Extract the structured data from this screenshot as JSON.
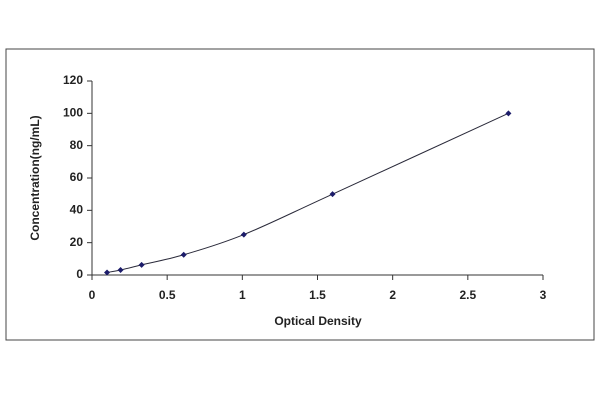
{
  "chart_data": {
    "type": "line",
    "xlabel": "Optical Density",
    "ylabel": "Concentration(ng/mL)",
    "x": [
      0.1,
      0.19,
      0.33,
      0.61,
      1.01,
      1.6,
      2.77
    ],
    "values": [
      1.56,
      3.12,
      6.25,
      12.5,
      25,
      50,
      100
    ],
    "color": "#1c1c6a",
    "line_color": "#2a2a3a",
    "xlim": [
      0,
      3
    ],
    "xticks": [
      0,
      0.5,
      1,
      1.5,
      2,
      2.5,
      3
    ],
    "ylim": [
      0,
      120
    ],
    "yticks": [
      0,
      20,
      40,
      60,
      80,
      100,
      120
    ],
    "smooth": true
  }
}
